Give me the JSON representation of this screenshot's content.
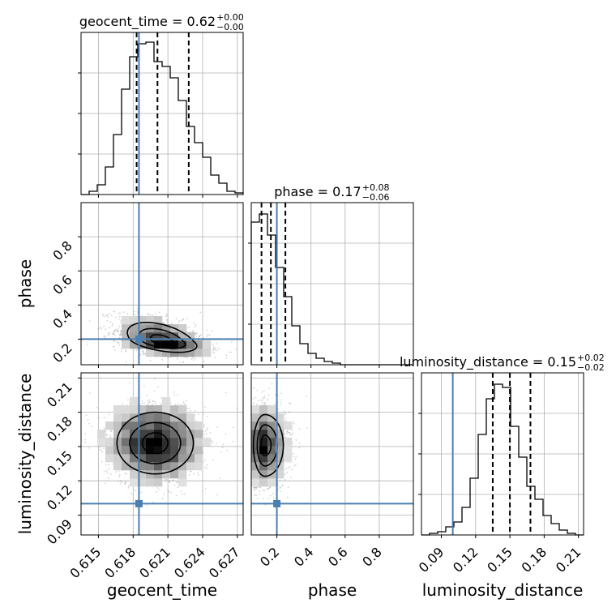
{
  "chart_data": {
    "type": "corner",
    "truths": {
      "geocent_time": 0.6185,
      "phase": 0.2,
      "luminosity_distance": 0.1
    },
    "colors": {
      "truth": "#4a7fb0",
      "hist": "#000000",
      "grid": "#b0b0b0",
      "points": "#808080"
    },
    "grid": true,
    "parameters": [
      {
        "name": "geocent_time",
        "xlabel": "geocent_time",
        "ylabel": "",
        "title": "geocent_time = 0.62",
        "title_sup": "+0.00",
        "title_sub": "−0.00",
        "range": [
          0.6135,
          0.6275
        ],
        "ticks": [
          0.615,
          0.618,
          0.621,
          0.624,
          0.627
        ],
        "tick_labels": [
          "0.615",
          "0.618",
          "0.621",
          "0.624",
          "0.627"
        ],
        "quantiles": [
          0.6183,
          0.6201,
          0.6228
        ],
        "hist": [
          0,
          0.02,
          0.06,
          0.17,
          0.37,
          0.65,
          0.85,
          0.93,
          0.94,
          0.82,
          0.79,
          0.72,
          0.58,
          0.42,
          0.32,
          0.23,
          0.12,
          0.07,
          0.02,
          0.01
        ]
      },
      {
        "name": "phase",
        "xlabel": "phase",
        "ylabel": "phase",
        "title": "phase = 0.17",
        "title_sup": "+0.08",
        "title_sub": "−0.06",
        "range": [
          0.05,
          1.0
        ],
        "ticks": [
          0.2,
          0.4,
          0.6,
          0.8
        ],
        "tick_labels": [
          "0.2",
          "0.4",
          "0.6",
          "0.8"
        ],
        "quantiles": [
          0.11,
          0.165,
          0.25
        ],
        "hist": [
          0.88,
          0.93,
          0.8,
          0.6,
          0.42,
          0.24,
          0.13,
          0.07,
          0.04,
          0.02,
          0.01,
          0,
          0,
          0,
          0,
          0,
          0,
          0,
          0,
          0
        ]
      },
      {
        "name": "luminosity_distance",
        "xlabel": "luminosity_distance",
        "ylabel": "luminosity_distance",
        "title": "luminosity_distance = 0.15",
        "title_sup": "+0.02",
        "title_sub": "−0.02",
        "range": [
          0.0726,
          0.2145
        ],
        "ticks": [
          0.09,
          0.12,
          0.15,
          0.18,
          0.21
        ],
        "tick_labels": [
          "0.09",
          "0.12",
          "0.15",
          "0.18",
          "0.21"
        ],
        "quantiles": [
          0.135,
          0.15,
          0.168
        ],
        "hist": [
          0,
          0.01,
          0.02,
          0.05,
          0.08,
          0.17,
          0.35,
          0.62,
          0.84,
          0.93,
          0.91,
          0.67,
          0.48,
          0.3,
          0.22,
          0.12,
          0.07,
          0.03,
          0.01,
          0
        ]
      }
    ],
    "pairs": [
      {
        "x": "geocent_time",
        "y": "phase",
        "center": [
          0.6205,
          0.19
        ],
        "spread": [
          0.002,
          0.045
        ],
        "corr": -0.45,
        "skew": [
          0,
          1.6
        ]
      },
      {
        "x": "geocent_time",
        "y": "luminosity_distance",
        "center": [
          0.6199,
          0.153
        ],
        "spread": [
          0.0022,
          0.018
        ],
        "corr": 0.0,
        "skew": [
          0,
          0
        ]
      },
      {
        "x": "phase",
        "y": "luminosity_distance",
        "center": [
          0.13,
          0.151
        ],
        "spread": [
          0.045,
          0.018
        ],
        "corr": 0.0,
        "skew": [
          1.6,
          0
        ]
      }
    ]
  }
}
